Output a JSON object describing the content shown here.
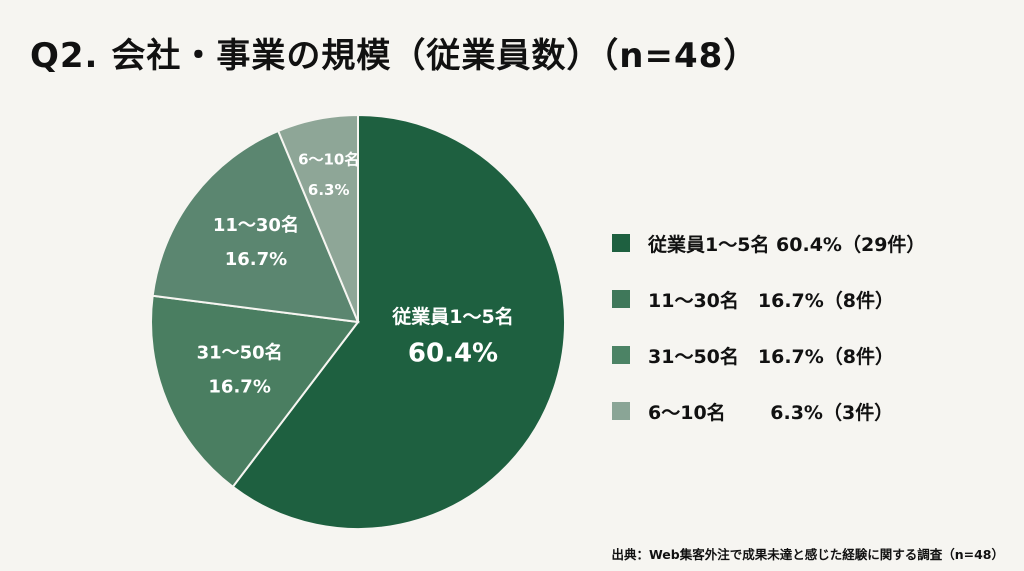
{
  "title": "Q2. 会社・事業の規模（従業員数）（n=48）",
  "source": "出典：Web集客外注で成果未達と感じた経験に関する調査（n=48）",
  "chart_data": {
    "type": "pie",
    "title": "Q2. 会社・事業の規模（従業員数）（n=48）",
    "slices": [
      {
        "name": "従業員1〜5名",
        "percent": 60.4,
        "count": 29,
        "label_pct": "60.4%",
        "color": "#1e6040",
        "legend": "従業員1〜5名 60.4%（29件）"
      },
      {
        "name": "31〜50名",
        "percent": 16.7,
        "count": 8,
        "label_pct": "16.7%",
        "color": "#4a7e61",
        "legend": "31〜50名　16.7%（8件）"
      },
      {
        "name": "11〜30名",
        "percent": 16.7,
        "count": 8,
        "label_pct": "16.7%",
        "color": "#5b8670",
        "legend": "11〜30名　16.7%（8件）"
      },
      {
        "name": "6〜10名",
        "percent": 6.3,
        "count": 3,
        "label_pct": "6.3%",
        "color": "#8ea697",
        "legend": "6〜10名　　 6.3%（3件）"
      }
    ],
    "legend_order": [
      0,
      2,
      1,
      3
    ],
    "legend_colors": [
      "#1e6040",
      "#3f785a",
      "#4c8365",
      "#8aa596"
    ],
    "legend_placement": "right"
  }
}
